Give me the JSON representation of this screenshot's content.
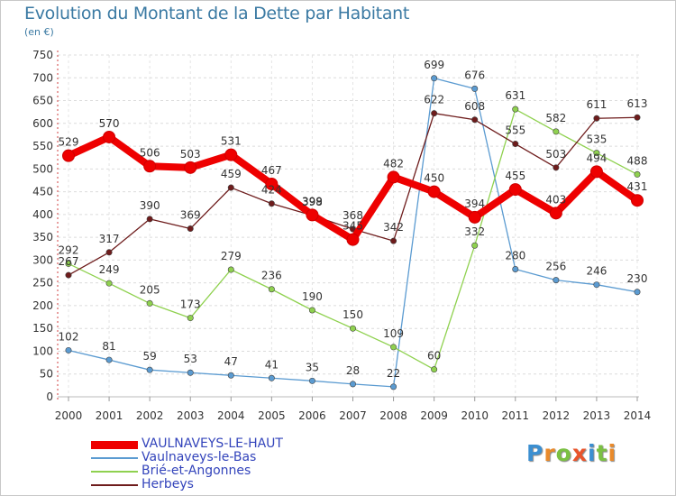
{
  "title": "Evolution du Montant de la Dette par Habitant",
  "unit": "(en €)",
  "logo": {
    "text": "Proxiti",
    "letters": [
      {
        "ch": "P",
        "color": "#3b8fd1"
      },
      {
        "ch": "r",
        "color": "#e98a2b"
      },
      {
        "ch": "o",
        "color": "#7bc043"
      },
      {
        "ch": "x",
        "color": "#e9542b"
      },
      {
        "ch": "i",
        "color": "#3b8fd1"
      },
      {
        "ch": "t",
        "color": "#7bc043"
      },
      {
        "ch": "i",
        "color": "#e98a2b"
      }
    ]
  },
  "chart_data": {
    "type": "line",
    "title": "Evolution du Montant de la Dette par Habitant",
    "ylabel": "(en €)",
    "xlabel": "",
    "ylim": [
      0,
      750
    ],
    "ytick_step": 50,
    "yticks": [
      "0",
      "50",
      "100",
      "150",
      "200",
      "250",
      "300",
      "350",
      "400",
      "450",
      "500",
      "550",
      "600",
      "650",
      "700",
      "750"
    ],
    "grid": "horizontal",
    "legend": "bottom-left",
    "categories": [
      "2000",
      "2001",
      "2002",
      "2003",
      "2004",
      "2005",
      "2006",
      "2007",
      "2008",
      "2009",
      "2010",
      "2011",
      "2012",
      "2013",
      "2014"
    ],
    "series": [
      {
        "name": "VAULNAVEYS-LE-HAUT",
        "color": "#ee0000",
        "values": [
          529,
          570,
          506,
          503,
          531,
          467,
          399,
          345,
          482,
          450,
          394,
          455,
          403,
          494,
          431
        ],
        "labels": [
          "529",
          "570",
          "506",
          "503",
          "531",
          "467",
          "399",
          "345",
          "482",
          "450",
          "394",
          "455",
          "403",
          "494",
          "431"
        ]
      },
      {
        "name": "Vaulnaveys-le-Bas",
        "color": "#5b9bd1",
        "values": [
          102,
          81,
          59,
          53,
          47,
          41,
          35,
          28,
          22,
          699,
          676,
          280,
          256,
          246,
          230
        ],
        "labels": [
          "102",
          "81",
          "59",
          "53",
          "47",
          "41",
          "35",
          "28",
          "22",
          "699",
          "676",
          "280",
          "256",
          "246",
          "230"
        ]
      },
      {
        "name": "Brié-et-Angonnes",
        "color": "#8fd14f",
        "values": [
          292,
          249,
          205,
          173,
          279,
          236,
          190,
          150,
          109,
          60,
          332,
          631,
          582,
          535,
          488
        ],
        "labels": [
          "292",
          "249",
          "205",
          "173",
          "279",
          "236",
          "190",
          "150",
          "109",
          "60",
          "332",
          "631",
          "582",
          "535",
          "488"
        ]
      },
      {
        "name": "Herbeys",
        "color": "#6e1c1c",
        "values": [
          267,
          317,
          390,
          369,
          459,
          424,
          398,
          368,
          342,
          622,
          608,
          555,
          503,
          611,
          613
        ],
        "labels": [
          "267",
          "317",
          "390",
          "369",
          "459",
          "424",
          "398",
          "368",
          "342",
          "622",
          "608",
          "555",
          "503",
          "611",
          "613"
        ]
      }
    ]
  }
}
